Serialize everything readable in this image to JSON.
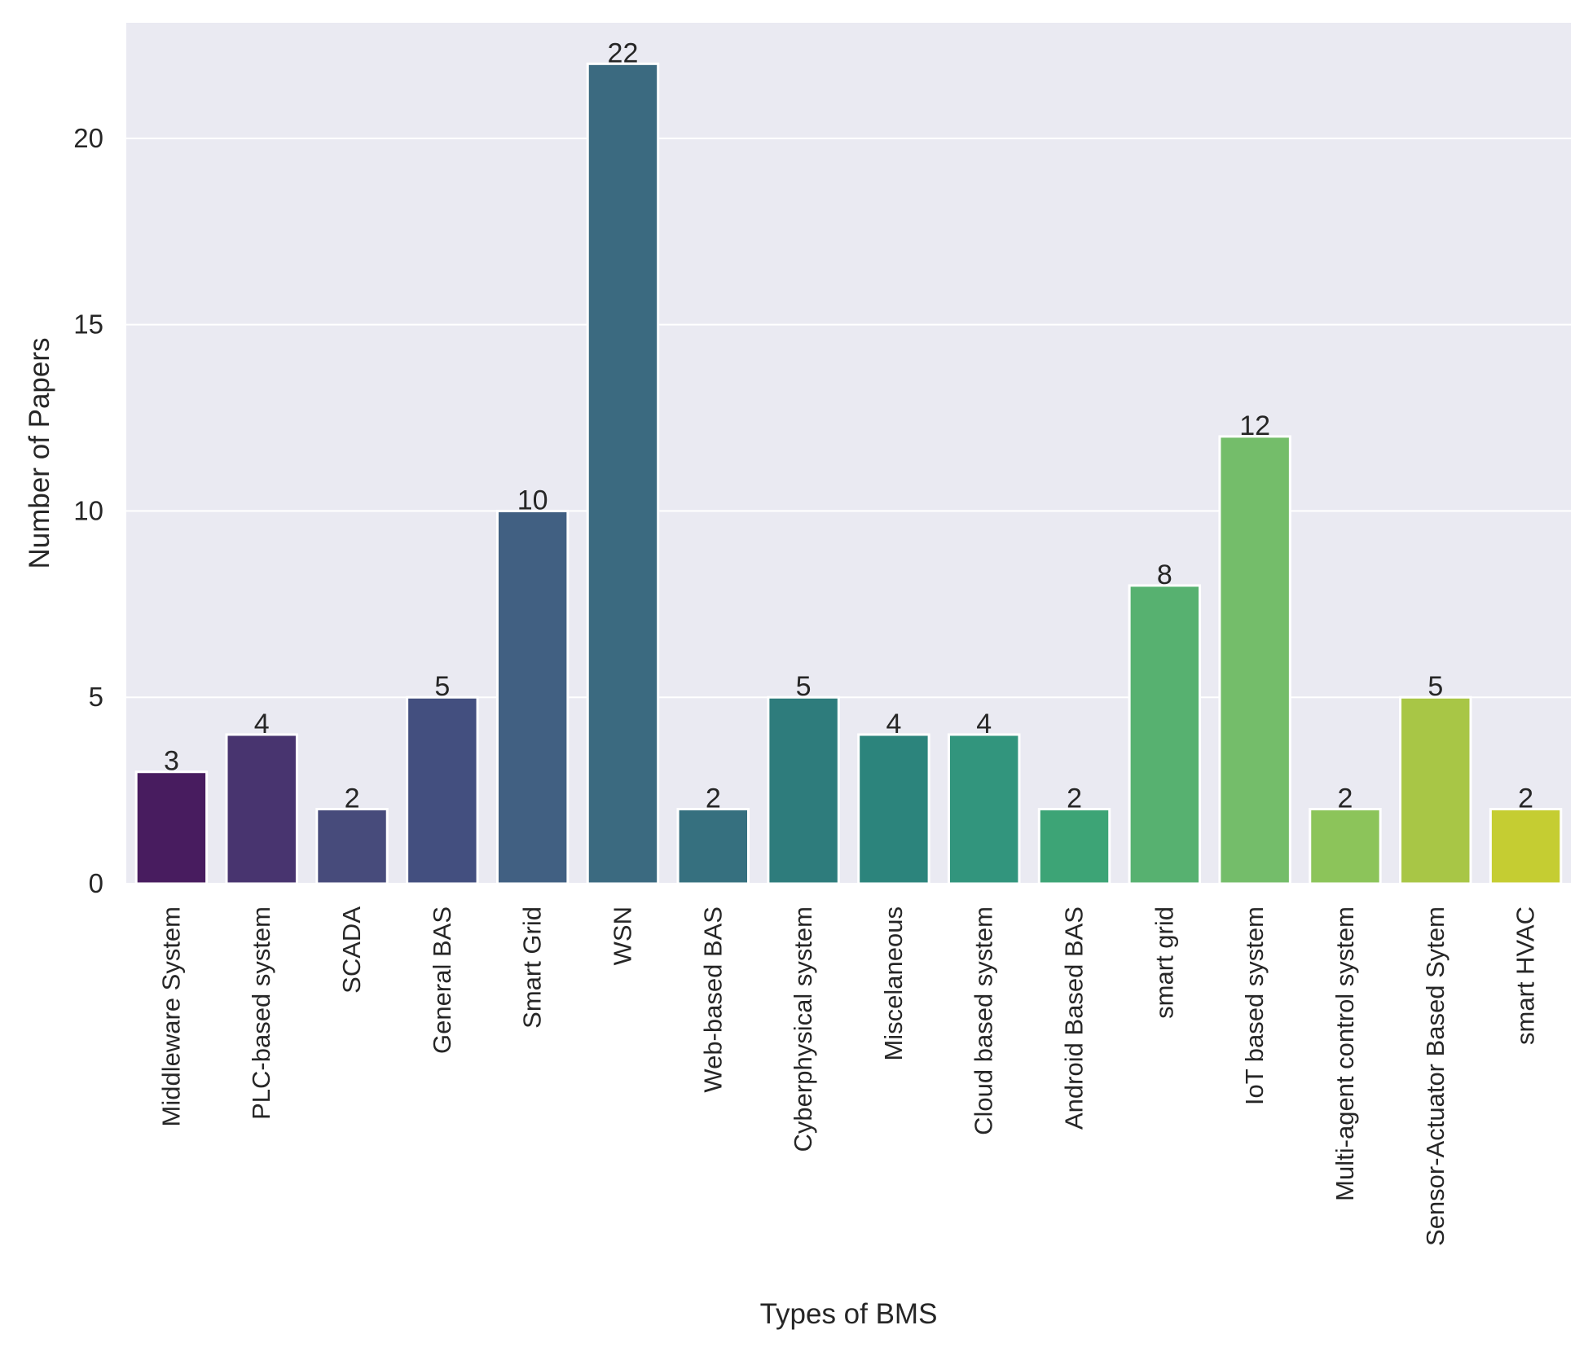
{
  "chart_data": {
    "type": "bar",
    "title": "",
    "xlabel": "Types of BMS",
    "ylabel": "Number of Papers",
    "ylim": [
      0,
      23.1
    ],
    "yticks": [
      0,
      5,
      10,
      15,
      20
    ],
    "grid": true,
    "categories": [
      "Middleware System",
      "PLC-based system",
      "SCADA",
      "General BAS",
      "Smart Grid",
      "WSN",
      "Web-based BAS",
      "Cyberphysical system",
      "Miscelaneous",
      "Cloud based system",
      "Android Based BAS",
      "smart grid",
      "IoT based system",
      "Multi-agent control system",
      "Sensor-Actuator Based Sytem",
      "smart HVAC"
    ],
    "values": [
      3,
      4,
      2,
      5,
      10,
      22,
      2,
      5,
      4,
      4,
      2,
      8,
      12,
      2,
      5,
      2
    ],
    "colors": [
      "#481c5f",
      "#48346f",
      "#474b7b",
      "#434f7f",
      "#416082",
      "#3b6a80",
      "#36707f",
      "#2e7c7c",
      "#2c847c",
      "#32957d",
      "#3da476",
      "#57b170",
      "#74bd6a",
      "#8cc45a",
      "#a8c646",
      "#c5cd32"
    ],
    "background_color": "#eaeaf2",
    "grid_color": "#ffffff"
  }
}
